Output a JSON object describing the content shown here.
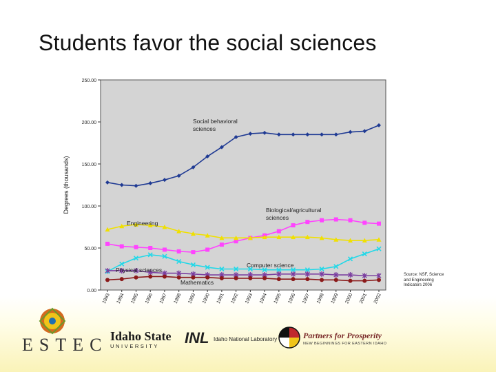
{
  "slide": {
    "title": "Students favor the social sciences"
  },
  "chart_data": {
    "type": "line",
    "ylabel": "Degrees (thousands)",
    "ylim": [
      0,
      250
    ],
    "yticks": [
      "0.00",
      "50.00",
      "100.00",
      "150.00",
      "200.00",
      "250.00"
    ],
    "x": [
      "1983",
      "1984",
      "1985",
      "1986",
      "1987",
      "1988",
      "1989",
      "1990",
      "1991",
      "1992",
      "1993",
      "1994",
      "1995",
      "1996",
      "1997",
      "1998",
      "1999",
      "2000",
      "2001",
      "2002"
    ],
    "grid": false,
    "series": [
      {
        "name": "Social behavioral sciences",
        "color": "#1f3a93",
        "marker": "diamond",
        "values": [
          128,
          125,
          124,
          127,
          131,
          136,
          146,
          159,
          170,
          182,
          186,
          187,
          185,
          185,
          185,
          185,
          185,
          188,
          189,
          196
        ]
      },
      {
        "name": "Biological/agricultural sciences",
        "color": "#ff44ff",
        "marker": "square",
        "values": [
          55,
          52,
          51,
          50,
          48,
          46,
          45,
          48,
          54,
          58,
          62,
          65,
          70,
          77,
          81,
          83,
          84,
          83,
          80,
          79
        ]
      },
      {
        "name": "Engineering",
        "color": "#f0e000",
        "marker": "triangle",
        "values": [
          72,
          76,
          78,
          77,
          75,
          70,
          67,
          65,
          62,
          62,
          62,
          63,
          63,
          63,
          63,
          62,
          60,
          59,
          59,
          60
        ]
      },
      {
        "name": "Computer science",
        "color": "#22d8e8",
        "marker": "x",
        "values": [
          22,
          31,
          38,
          42,
          40,
          34,
          30,
          27,
          25,
          25,
          25,
          24,
          24,
          24,
          24,
          25,
          28,
          37,
          43,
          49
        ]
      },
      {
        "name": "Physical sciences",
        "color": "#7b3fa0",
        "marker": "star",
        "values": [
          23,
          23,
          23,
          21,
          20,
          20,
          19,
          18,
          18,
          18,
          18,
          18,
          19,
          19,
          19,
          19,
          18,
          18,
          17,
          17
        ]
      },
      {
        "name": "Mathematics",
        "color": "#8b1a1a",
        "marker": "circle",
        "values": [
          12,
          13,
          15,
          16,
          16,
          15,
          15,
          15,
          14,
          14,
          14,
          14,
          13,
          13,
          13,
          12,
          12,
          11,
          11,
          12
        ]
      }
    ],
    "annotations": [
      {
        "text": "Social behavioral sciences",
        "lines": [
          "Social behavioral",
          "sciences"
        ],
        "series": "Social behavioral sciences"
      },
      {
        "text": "Biological/agricultural sciences",
        "lines": [
          "Biological/agricultural",
          "sciences"
        ],
        "series": "Biological/agricultural sciences"
      },
      {
        "text": "Engineering",
        "lines": [
          "Engineering"
        ],
        "series": "Engineering"
      },
      {
        "text": "Computer science",
        "lines": [
          "Computer science"
        ],
        "series": "Computer science"
      },
      {
        "text": "Physical sciences",
        "lines": [
          "Physical sciences"
        ],
        "series": "Physical sciences"
      },
      {
        "text": "Mathematics",
        "lines": [
          "Mathematics"
        ],
        "series": "Mathematics"
      }
    ],
    "source": "Source: NSF, Science and Engineering Indicators 2006"
  },
  "footer": {
    "estec": "ESTEC",
    "isu_name": "Idaho State",
    "isu_sub": "UNIVERSITY",
    "inl_mark": "INL",
    "inl_text": "Idaho National Laboratory",
    "pfp_name": "Partners for Prosperity",
    "pfp_sub": "NEW BEGINNINGS FOR EASTERN IDAHO",
    "colors": {
      "pfp_red": "#c0282d",
      "pfp_yellow": "#f0c419",
      "pfp_black": "#111111",
      "pfp_white": "#ffffff"
    }
  }
}
